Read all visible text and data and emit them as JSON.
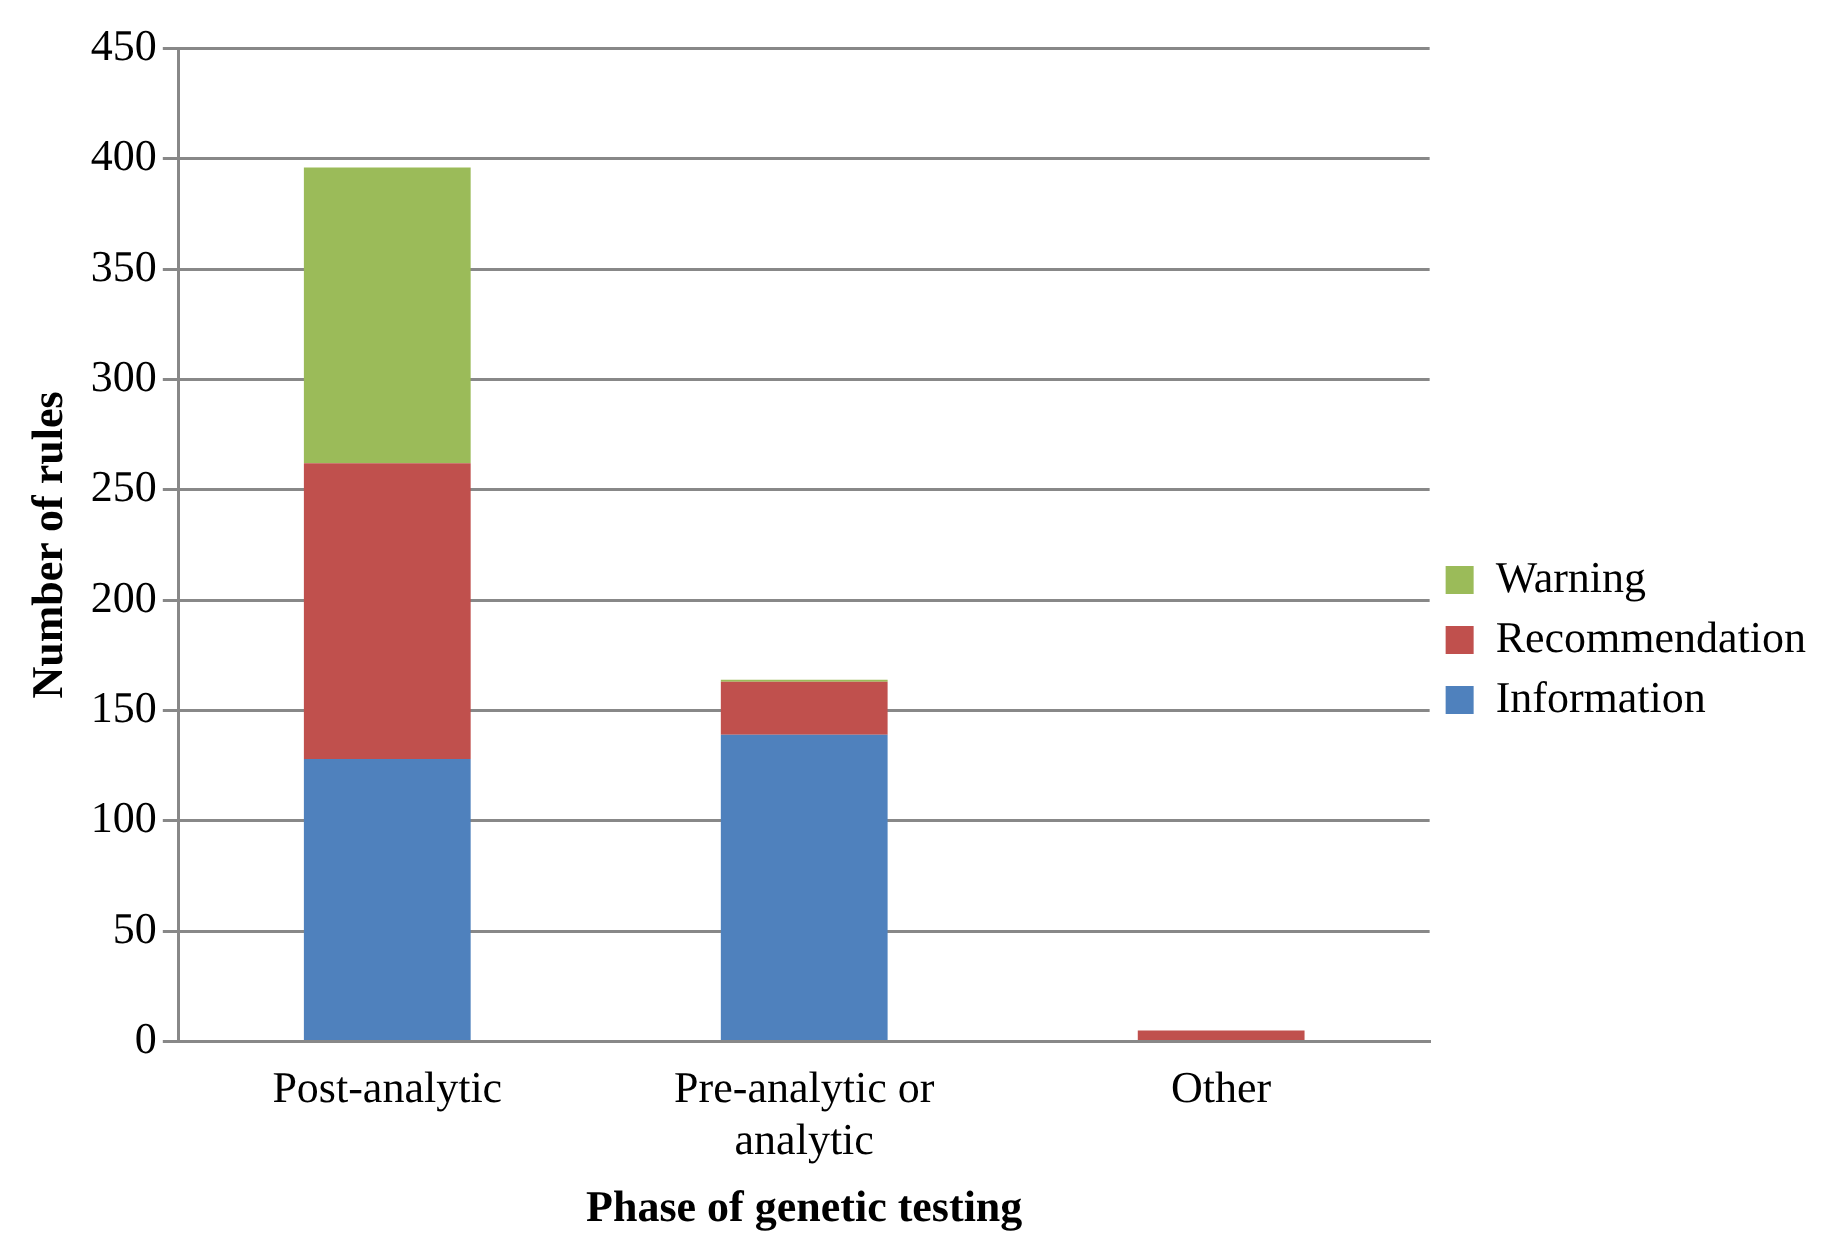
{
  "chart_data": {
    "type": "bar",
    "stacked": true,
    "xlabel": "Phase of genetic testing",
    "ylabel": "Number of rules",
    "categories": [
      "Post-analytic",
      "Pre-analytic or analytic",
      "Other"
    ],
    "series": [
      {
        "name": "Information",
        "color": "#4f81bd",
        "values": [
          128,
          139,
          0
        ]
      },
      {
        "name": "Recommendation",
        "color": "#c0504d",
        "values": [
          134,
          24,
          5
        ]
      },
      {
        "name": "Warning",
        "color": "#9bbb59",
        "values": [
          134,
          1,
          0
        ]
      }
    ],
    "ylim": [
      0,
      450
    ],
    "yticks": [
      0,
      50,
      100,
      150,
      200,
      250,
      300,
      350,
      400,
      450
    ],
    "grid": "y",
    "legend": "right"
  }
}
